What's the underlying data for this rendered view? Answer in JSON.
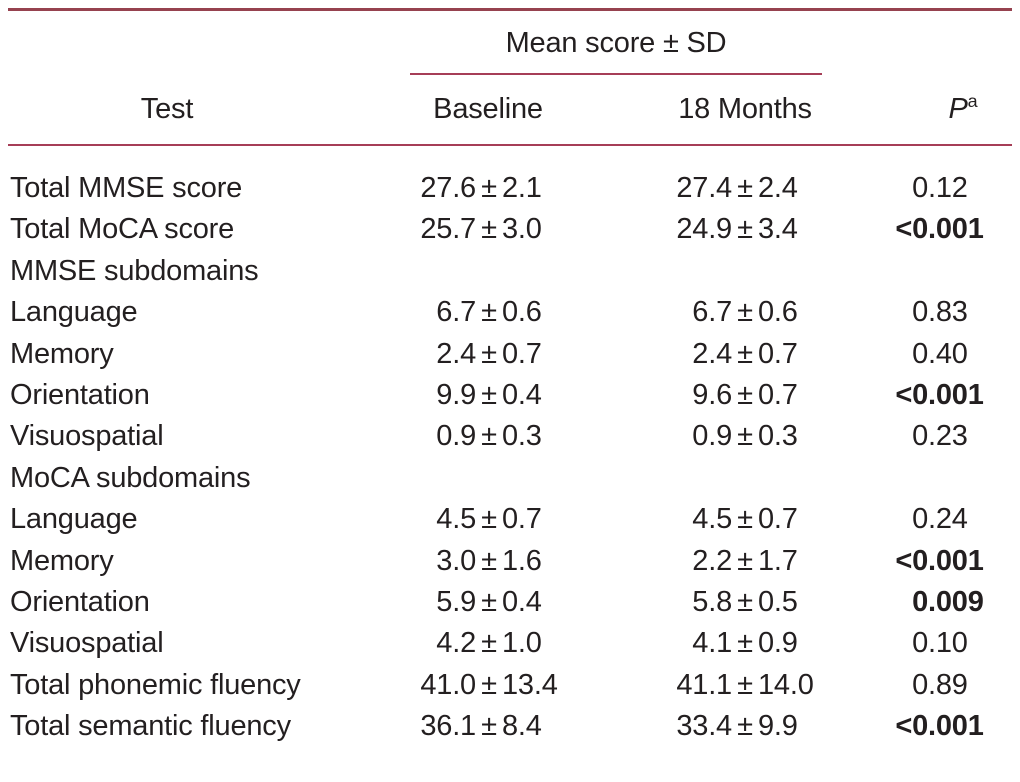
{
  "table": {
    "spanner": "Mean score ± SD",
    "columns": {
      "test": "Test",
      "baseline": "Baseline",
      "months18": "18 Months",
      "p": "P",
      "p_sup": "a"
    },
    "symbols": {
      "pm": "±"
    },
    "colors": {
      "rule_thick": "#96424f",
      "rule_thin": "#a63e57",
      "text": "#231f20"
    },
    "rows": [
      {
        "type": "data",
        "label": "Total MMSE score",
        "baseline": {
          "mean": "27.6",
          "sd": "2.1"
        },
        "months18": {
          "mean": "27.4",
          "sd": "2.4"
        },
        "p": "0.12",
        "p_bold": false
      },
      {
        "type": "data",
        "label": "Total MoCA score",
        "baseline": {
          "mean": "25.7",
          "sd": "3.0"
        },
        "months18": {
          "mean": "24.9",
          "sd": "3.4"
        },
        "p": "<0.001",
        "p_bold": true
      },
      {
        "type": "section",
        "label": "MMSE subdomains"
      },
      {
        "type": "data",
        "label": "Language",
        "baseline": {
          "mean": "6.7",
          "sd": "0.6"
        },
        "months18": {
          "mean": "6.7",
          "sd": "0.6"
        },
        "p": "0.83",
        "p_bold": false
      },
      {
        "type": "data",
        "label": "Memory",
        "baseline": {
          "mean": "2.4",
          "sd": "0.7"
        },
        "months18": {
          "mean": "2.4",
          "sd": "0.7"
        },
        "p": "0.40",
        "p_bold": false
      },
      {
        "type": "data",
        "label": "Orientation",
        "baseline": {
          "mean": "9.9",
          "sd": "0.4"
        },
        "months18": {
          "mean": "9.6",
          "sd": "0.7"
        },
        "p": "<0.001",
        "p_bold": true
      },
      {
        "type": "data",
        "label": "Visuospatial",
        "baseline": {
          "mean": "0.9",
          "sd": "0.3"
        },
        "months18": {
          "mean": "0.9",
          "sd": "0.3"
        },
        "p": "0.23",
        "p_bold": false
      },
      {
        "type": "section",
        "label": "MoCA subdomains"
      },
      {
        "type": "data",
        "label": "Language",
        "baseline": {
          "mean": "4.5",
          "sd": "0.7"
        },
        "months18": {
          "mean": "4.5",
          "sd": "0.7"
        },
        "p": "0.24",
        "p_bold": false
      },
      {
        "type": "data",
        "label": "Memory",
        "baseline": {
          "mean": "3.0",
          "sd": "1.6"
        },
        "months18": {
          "mean": "2.2",
          "sd": "1.7"
        },
        "p": "<0.001",
        "p_bold": true
      },
      {
        "type": "data",
        "label": "Orientation",
        "baseline": {
          "mean": "5.9",
          "sd": "0.4"
        },
        "months18": {
          "mean": "5.8",
          "sd": "0.5"
        },
        "p": "0.009",
        "p_bold": true
      },
      {
        "type": "data",
        "label": "Visuospatial",
        "baseline": {
          "mean": "4.2",
          "sd": "1.0"
        },
        "months18": {
          "mean": "4.1",
          "sd": "0.9"
        },
        "p": "0.10",
        "p_bold": false
      },
      {
        "type": "data",
        "label": "Total phonemic fluency",
        "baseline": {
          "mean": "41.0",
          "sd": "13.4"
        },
        "months18": {
          "mean": "41.1",
          "sd": "14.0"
        },
        "p": "0.89",
        "p_bold": false
      },
      {
        "type": "data",
        "label": "Total semantic fluency",
        "baseline": {
          "mean": "36.1",
          "sd": "8.4"
        },
        "months18": {
          "mean": "33.4",
          "sd": "9.9"
        },
        "p": "<0.001",
        "p_bold": true
      }
    ]
  }
}
